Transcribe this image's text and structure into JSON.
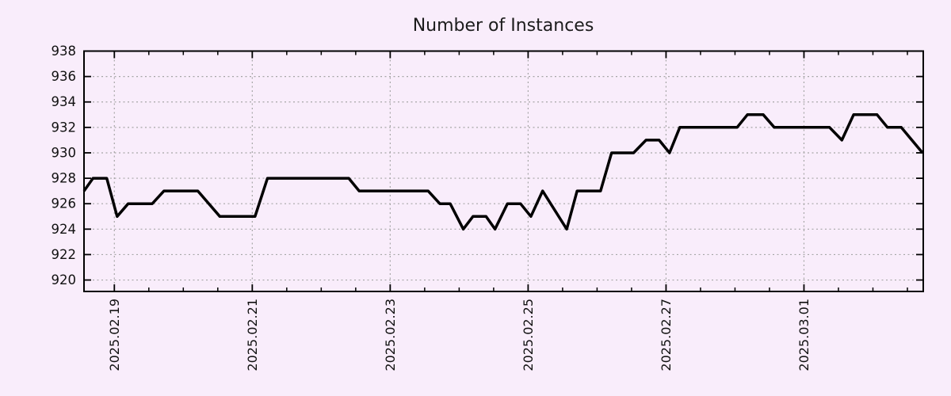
{
  "page": {
    "background_color": "#f9edfb"
  },
  "chart_data": {
    "type": "line",
    "title": "Number of Instances",
    "xlabel": "",
    "ylabel": "",
    "legend": "none",
    "grid": true,
    "y_ticks": [
      920,
      922,
      924,
      926,
      928,
      930,
      932,
      934,
      936,
      938
    ],
    "ylim": [
      919.1,
      938
    ],
    "x_tick_labels": [
      "2025.02.19",
      "2025.02.21",
      "2025.02.23",
      "2025.02.25",
      "2025.02.27",
      "2025.03.01"
    ],
    "x_tick_days": [
      0,
      2,
      4,
      6,
      8,
      10
    ],
    "x_minor_tick_interval_days": 0.5,
    "x_range_days": [
      -0.44,
      11.73
    ],
    "x_major_interval_days": 2,
    "series": [
      {
        "name": "instances",
        "points": [
          [
            -0.44,
            927
          ],
          [
            -0.31,
            928
          ],
          [
            -0.11,
            928
          ],
          [
            0.04,
            925
          ],
          [
            0.2,
            926
          ],
          [
            0.55,
            926
          ],
          [
            0.72,
            927
          ],
          [
            1.21,
            927
          ],
          [
            1.53,
            925
          ],
          [
            2.04,
            925
          ],
          [
            2.22,
            928
          ],
          [
            3.4,
            928
          ],
          [
            3.55,
            927
          ],
          [
            4.55,
            927
          ],
          [
            4.72,
            926
          ],
          [
            4.87,
            926
          ],
          [
            5.06,
            924
          ],
          [
            5.2,
            925
          ],
          [
            5.39,
            925
          ],
          [
            5.52,
            924
          ],
          [
            5.7,
            926
          ],
          [
            5.89,
            926
          ],
          [
            6.04,
            925
          ],
          [
            6.21,
            927
          ],
          [
            6.56,
            924
          ],
          [
            6.71,
            927
          ],
          [
            7.05,
            927
          ],
          [
            7.21,
            930
          ],
          [
            7.53,
            930
          ],
          [
            7.71,
            931
          ],
          [
            7.9,
            931
          ],
          [
            8.05,
            930
          ],
          [
            8.2,
            932
          ],
          [
            9.03,
            932
          ],
          [
            9.18,
            933
          ],
          [
            9.41,
            933
          ],
          [
            9.57,
            932
          ],
          [
            10.37,
            932
          ],
          [
            10.55,
            931
          ],
          [
            10.72,
            933
          ],
          [
            11.06,
            933
          ],
          [
            11.21,
            932
          ],
          [
            11.41,
            932
          ],
          [
            11.72,
            930
          ]
        ]
      }
    ],
    "colors": {
      "background": "#f9edfb",
      "line": "#000000",
      "grid": "#a6a6a6",
      "axis": "#000000",
      "text": "#111111"
    }
  }
}
